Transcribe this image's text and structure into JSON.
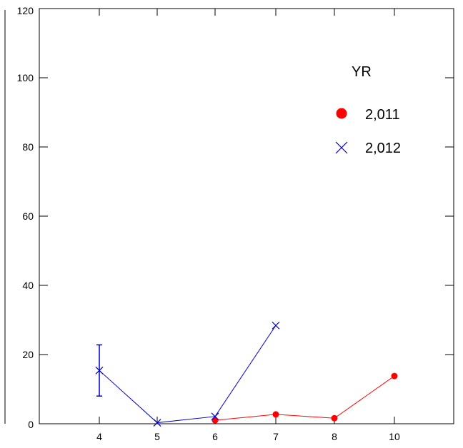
{
  "chart_data": {
    "type": "line",
    "title": "",
    "xlabel": "",
    "ylabel": "",
    "categories": [
      "4",
      "5",
      "6",
      "7",
      "8",
      "10"
    ],
    "ylim": [
      0,
      120
    ],
    "yticks": [
      "0",
      "20",
      "40",
      "60",
      "80",
      "100",
      "120"
    ],
    "grid": false,
    "legend": {
      "title": "YR",
      "position": "top-right",
      "entries": [
        "2,011",
        "2,012"
      ]
    },
    "series": [
      {
        "name": "2,011",
        "color": "#ff0000",
        "marker": "filled-circle",
        "values": [
          null,
          null,
          1,
          2.7,
          1.6,
          13.8
        ]
      },
      {
        "name": "2,012",
        "color": "#0000cc",
        "marker": "x",
        "values": [
          15.4,
          0.3,
          2.1,
          28.4,
          null,
          null
        ],
        "error_bars": [
          {
            "category": "4",
            "low": 8,
            "high": 22.8
          }
        ]
      }
    ]
  }
}
